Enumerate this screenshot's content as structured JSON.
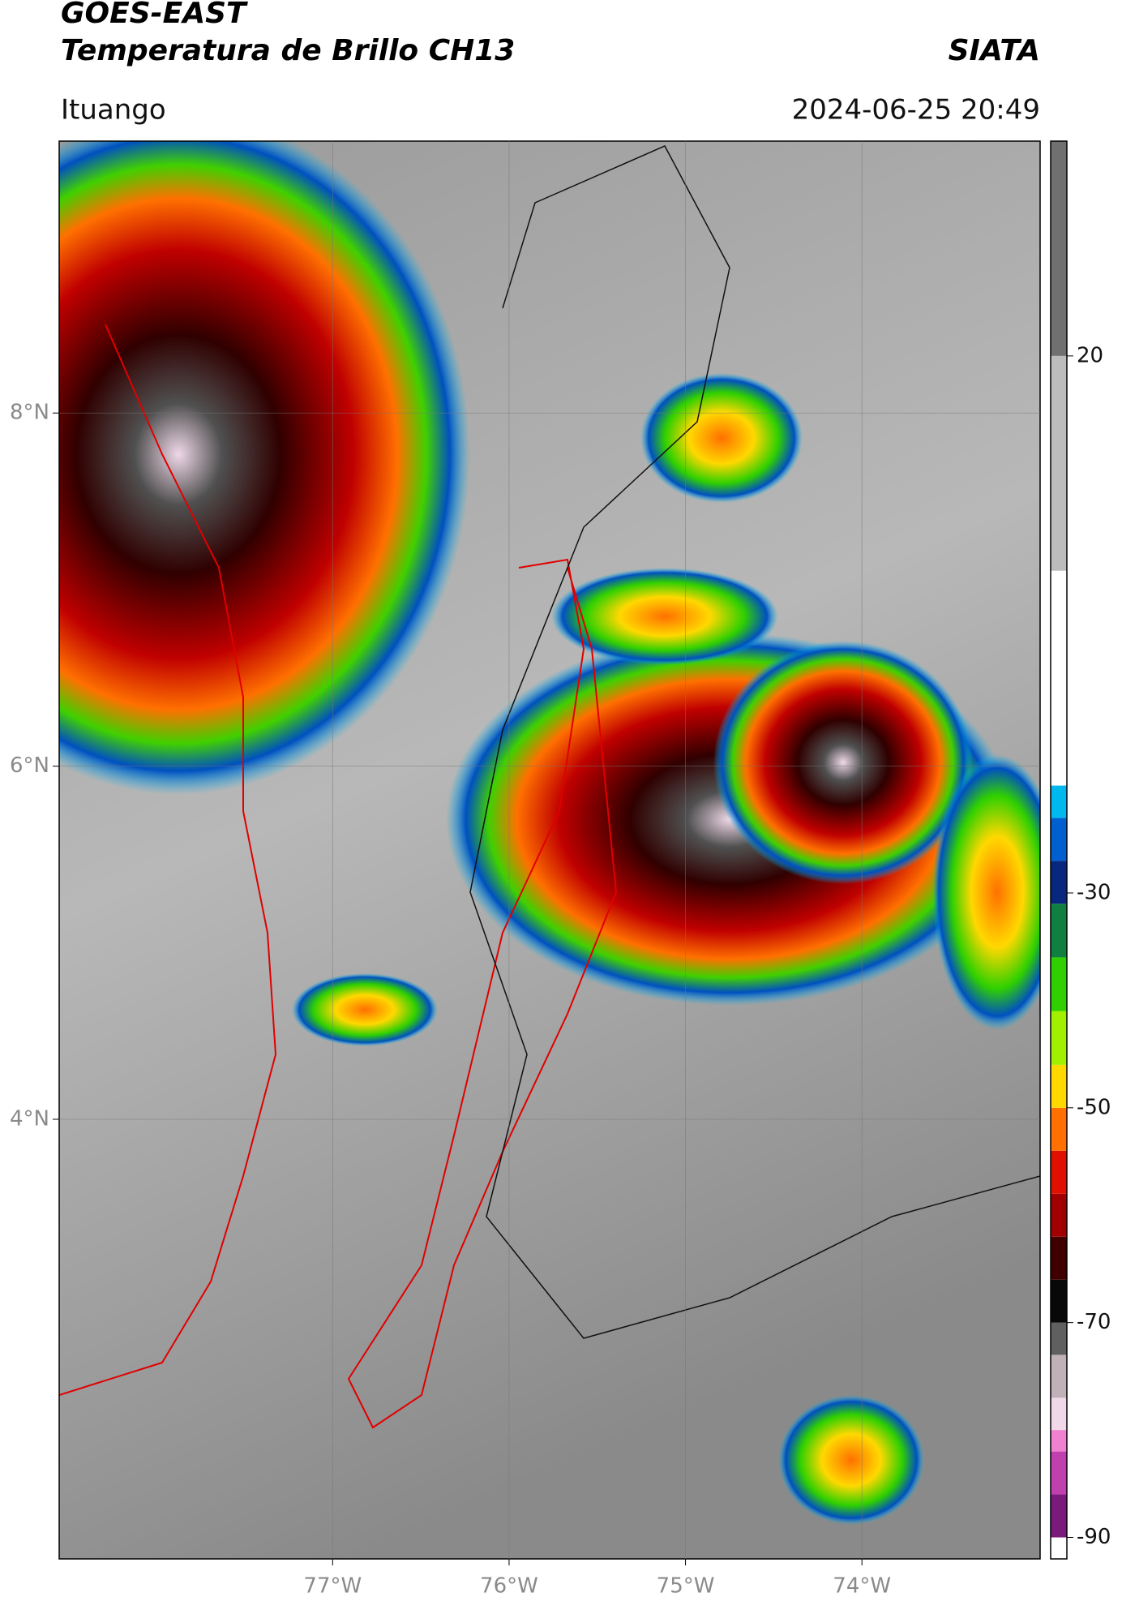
{
  "header": {
    "title": "GOES-EAST",
    "subtitle": "Temperatura de Brillo CH13",
    "brand": "SIATA",
    "region": "Ituango",
    "timestamp": "2024-06-25 20:49"
  },
  "map": {
    "xlim": [
      -78.55,
      -72.99
    ],
    "ylim": [
      1.51,
      9.54
    ],
    "xticks": [
      {
        "value": -77,
        "label": "77°W"
      },
      {
        "value": -76,
        "label": "76°W"
      },
      {
        "value": -75,
        "label": "75°W"
      },
      {
        "value": -74,
        "label": "74°W"
      }
    ],
    "yticks": [
      {
        "value": 4,
        "label": "4°N"
      },
      {
        "value": 6,
        "label": "6°N"
      },
      {
        "value": 8,
        "label": "8°N"
      }
    ],
    "grid": true
  },
  "colorbar": {
    "lim": [
      -92,
      40
    ],
    "ticks": [
      20,
      -30,
      -50,
      -70,
      -90
    ],
    "colormap": [
      {
        "value": -92,
        "color": "#ffffff"
      },
      {
        "value": -90,
        "color": "#7a1a7a"
      },
      {
        "value": -86,
        "color": "#c040b0"
      },
      {
        "value": -82,
        "color": "#f080d0"
      },
      {
        "value": -80,
        "color": "#f0d8e8"
      },
      {
        "value": -77,
        "color": "#c0b0b8"
      },
      {
        "value": -73,
        "color": "#606060"
      },
      {
        "value": -70,
        "color": "#080808"
      },
      {
        "value": -66,
        "color": "#400000"
      },
      {
        "value": -62,
        "color": "#a00000"
      },
      {
        "value": -58,
        "color": "#e01000"
      },
      {
        "value": -54,
        "color": "#ff7000"
      },
      {
        "value": -50,
        "color": "#ffd800"
      },
      {
        "value": -46,
        "color": "#a0f000"
      },
      {
        "value": -41,
        "color": "#30d000"
      },
      {
        "value": -36,
        "color": "#108040"
      },
      {
        "value": -31,
        "color": "#082880"
      },
      {
        "value": -27,
        "color": "#0060d0"
      },
      {
        "value": -23,
        "color": "#00b8f0"
      },
      {
        "value": -20,
        "color": "#ffffff"
      },
      {
        "value": 0,
        "color": "#bcbcbc"
      },
      {
        "value": 20,
        "color": "#707070"
      },
      {
        "value": 40,
        "color": "#101010"
      }
    ]
  }
}
